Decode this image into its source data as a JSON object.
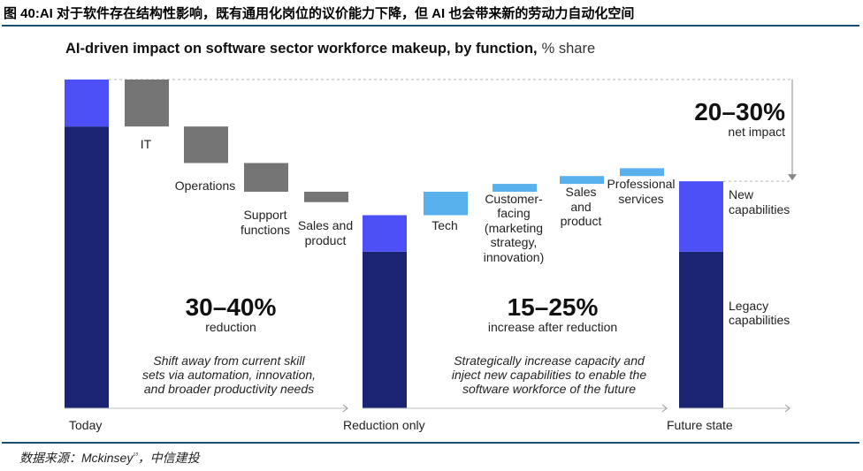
{
  "figure_title": "图 40:AI 对于软件存在结构性影响，既有通用化岗位的议价能力下降，但 AI 也会带来新的劳动力自动化空间",
  "source_text": "数据来源：Mckinsey¹³，中信建投",
  "colors": {
    "dark_blue": "#1b2373",
    "bright_blue": "#4c50f6",
    "gray": "#757575",
    "light_blue": "#58b0ec",
    "rule": "#1a4e73"
  },
  "chart_data": {
    "type": "waterfall",
    "title": "AI-driven impact on software sector workforce makeup, by function,",
    "title_unit": "% share",
    "axis_groups": [
      "Today",
      "Reduction only",
      "Future state"
    ],
    "stacked_totals": [
      {
        "name": "Today",
        "segments": [
          {
            "label": "",
            "value": 54,
            "color": "dark_blue"
          },
          {
            "label": "",
            "value": 9,
            "color": "bright_blue"
          }
        ]
      },
      {
        "name": "Reduction only",
        "segments": [
          {
            "label": "",
            "value": 30,
            "color": "dark_blue"
          },
          {
            "label": "",
            "value": 7,
            "color": "bright_blue"
          }
        ]
      },
      {
        "name": "Future state",
        "segments": [
          {
            "label": "Legacy capabilities",
            "value": 30,
            "color": "dark_blue"
          },
          {
            "label": "New capabilities",
            "value": 13.5,
            "color": "bright_blue"
          }
        ]
      }
    ],
    "reductions": [
      {
        "label": "IT",
        "value": -9
      },
      {
        "label": "Operations",
        "value": -7
      },
      {
        "label": "Support functions",
        "value": -5.5
      },
      {
        "label": "Sales and product",
        "value": -2
      }
    ],
    "increases": [
      {
        "label": "Tech",
        "value": 4.5
      },
      {
        "label": "Customer-facing (marketing strategy, innovation)",
        "value": 1.5
      },
      {
        "label": "Sales and product",
        "value": 1.5
      },
      {
        "label": "Professional services",
        "value": 1.5
      }
    ],
    "annotations": {
      "reduction_pct": "30–40%",
      "reduction_label": "reduction",
      "reduction_note": "Shift away from current skill sets via automation, innovation, and broader productivity needs",
      "increase_pct": "15–25%",
      "increase_label": "increase after reduction",
      "increase_note": "Strategically increase capacity and inject new capabilities to enable the software workforce of the future",
      "net_pct": "20–30%",
      "net_label": "net impact"
    },
    "ylim": [
      0,
      63
    ]
  }
}
